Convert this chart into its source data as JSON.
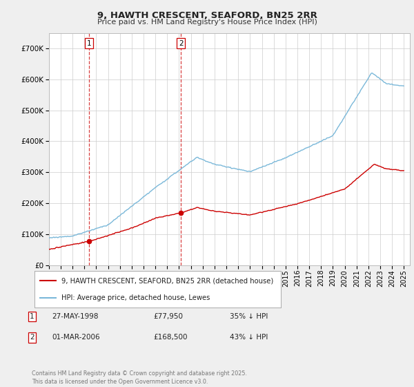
{
  "title1": "9, HAWTH CRESCENT, SEAFORD, BN25 2RR",
  "title2": "Price paid vs. HM Land Registry's House Price Index (HPI)",
  "legend_label1": "9, HAWTH CRESCENT, SEAFORD, BN25 2RR (detached house)",
  "legend_label2": "HPI: Average price, detached house, Lewes",
  "purchase1_date": "27-MAY-1998",
  "purchase1_price": "£77,950",
  "purchase1_hpi": "35% ↓ HPI",
  "purchase1_year": 1998.41,
  "purchase1_value": 77950,
  "purchase2_date": "01-MAR-2006",
  "purchase2_price": "£168,500",
  "purchase2_hpi": "43% ↓ HPI",
  "purchase2_year": 2006.17,
  "purchase2_value": 168500,
  "footer": "Contains HM Land Registry data © Crown copyright and database right 2025.\nThis data is licensed under the Open Government Licence v3.0.",
  "hpi_color": "#7ab8d9",
  "price_color": "#cc0000",
  "vline_color": "#cc0000",
  "background_color": "#efefef",
  "plot_bg_color": "#ffffff",
  "grid_color": "#cccccc",
  "ylim": [
    0,
    750000
  ],
  "xlim_start": 1995.0,
  "xlim_end": 2025.5
}
